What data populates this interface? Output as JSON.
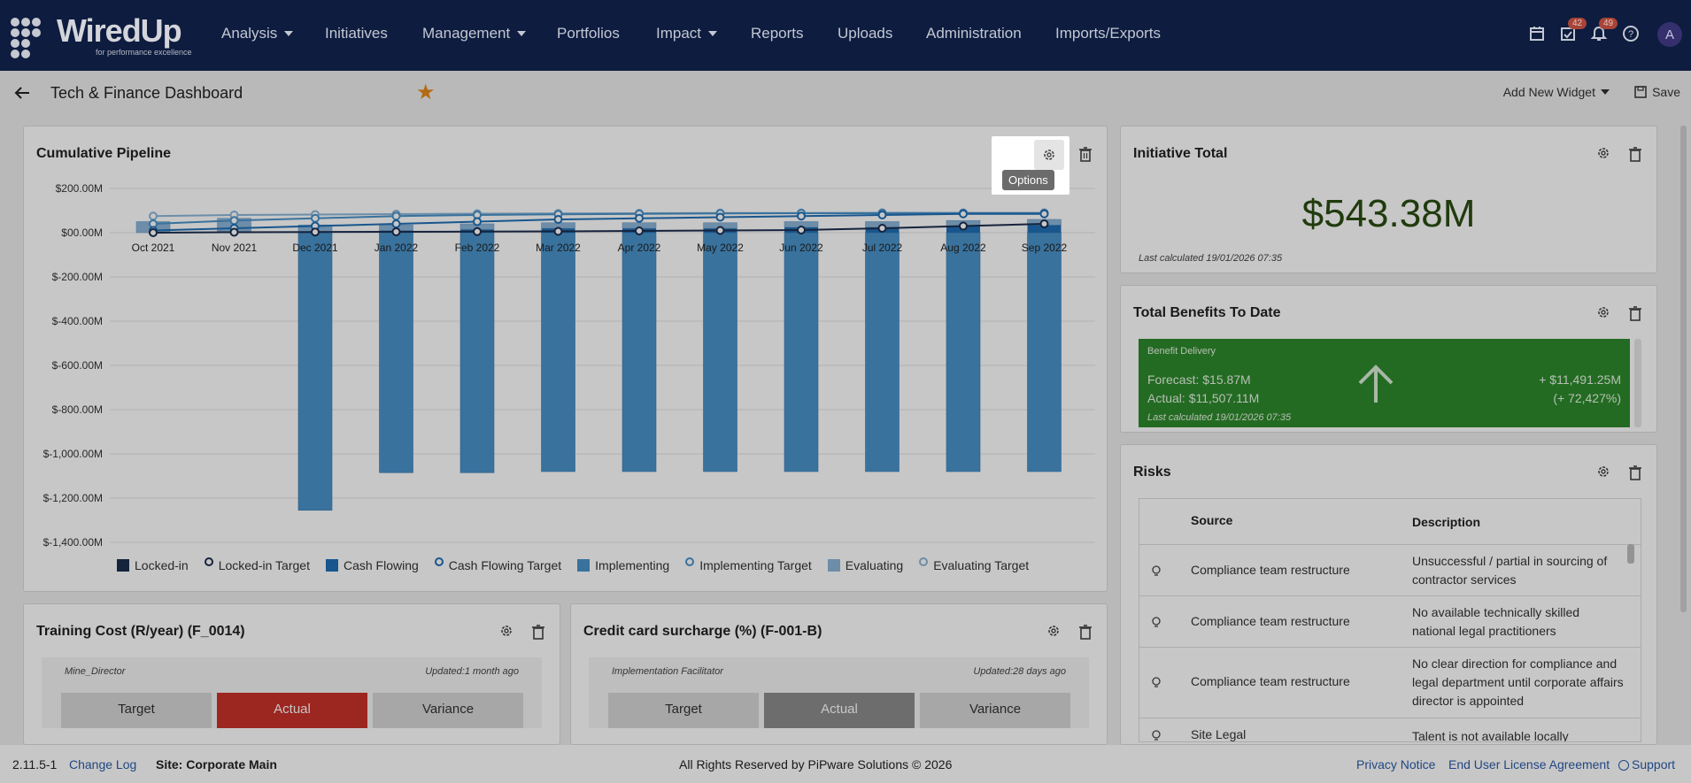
{
  "app": {
    "logo_text": "WiredUp",
    "logo_tagline": "for performance excellence",
    "avatar_initial": "A"
  },
  "nav": [
    {
      "label": "Analysis",
      "dropdown": true
    },
    {
      "label": "Initiatives",
      "dropdown": false
    },
    {
      "label": "Management",
      "dropdown": true
    },
    {
      "label": "Portfolios",
      "dropdown": false
    },
    {
      "label": "Impact",
      "dropdown": true
    },
    {
      "label": "Reports",
      "dropdown": false
    },
    {
      "label": "Uploads",
      "dropdown": false
    },
    {
      "label": "Administration",
      "dropdown": false
    },
    {
      "label": "Imports/Exports",
      "dropdown": false
    }
  ],
  "top_icons": {
    "tasks_badge": "42",
    "notifications_badge": "49"
  },
  "page": {
    "title": "Tech & Finance Dashboard",
    "add_widget_label": "Add New Widget",
    "save_label": "Save"
  },
  "pipeline": {
    "title": "Cumulative Pipeline",
    "options_tooltip": "Options",
    "legend": [
      "Locked-in",
      "Locked-in Target",
      "Cash Flowing",
      "Cash Flowing Target",
      "Implementing",
      "Implementing Target",
      "Evaluating",
      "Evaluating Target"
    ],
    "colors": {
      "locked_in": "#1c2d4f",
      "cash_flowing": "#1f6fb5",
      "implementing": "#4a92c9",
      "evaluating": "#8cb5d8"
    }
  },
  "chart_data": {
    "type": "bar",
    "title": "Cumulative Pipeline",
    "categories": [
      "Oct 2021",
      "Nov 2021",
      "Dec 2021",
      "Jan 2022",
      "Feb 2022",
      "Mar 2022",
      "Apr 2022",
      "May 2022",
      "Jun 2022",
      "Jul 2022",
      "Aug 2022",
      "Sep 2022"
    ],
    "y_ticks": [
      "$200.00M",
      "$00.00M",
      "$-200.00M",
      "$-400.00M",
      "$-600.00M",
      "$-800.00M",
      "$-1,000.00M",
      "$-1,200.00M",
      "$-1,400.00M"
    ],
    "ylim": [
      -1400,
      200
    ],
    "series": [
      {
        "name": "Evaluating",
        "kind": "bar",
        "values": [
          50,
          65,
          30,
          25,
          25,
          25,
          25,
          25,
          25,
          25,
          25,
          25
        ]
      },
      {
        "name": "Implementing",
        "kind": "bar",
        "values": [
          0,
          0,
          -1255,
          -1085,
          -1085,
          -1080,
          -1080,
          -1080,
          -1080,
          -1080,
          -1080,
          -1080
        ]
      },
      {
        "name": "Cash Flowing",
        "kind": "bar",
        "values": [
          0,
          0,
          5,
          10,
          15,
          20,
          20,
          20,
          25,
          25,
          30,
          35
        ]
      },
      {
        "name": "Locked-in Target",
        "kind": "line",
        "values": [
          0,
          2,
          3,
          4,
          5,
          6,
          8,
          10,
          12,
          20,
          30,
          40
        ]
      },
      {
        "name": "Cash Flowing Target",
        "kind": "line",
        "values": [
          10,
          20,
          30,
          40,
          50,
          60,
          65,
          70,
          75,
          80,
          85,
          85
        ]
      },
      {
        "name": "Implementing Target",
        "kind": "line",
        "values": [
          40,
          55,
          65,
          75,
          80,
          83,
          85,
          87,
          88,
          88,
          88,
          88
        ]
      },
      {
        "name": "Evaluating Target",
        "kind": "line",
        "values": [
          75,
          80,
          82,
          84,
          86,
          87,
          88,
          89,
          89,
          90,
          90,
          90
        ]
      }
    ]
  },
  "initiative_total": {
    "title": "Initiative Total",
    "value": "$543.38M",
    "last_calculated": "Last calculated 19/01/2026 07:35"
  },
  "benefits": {
    "title": "Total Benefits To Date",
    "card_title": "Benefit Delivery",
    "forecast": "Forecast: $15.87M",
    "actual": "Actual: $11,507.11M",
    "delta": "+ $11,491.25M",
    "delta_pct": "(+ 72,427%)",
    "last_calculated": "Last calculated 19/01/2026 07:35",
    "card_color": "#2e8a2c"
  },
  "risks": {
    "title": "Risks",
    "columns": [
      "Source",
      "Description"
    ],
    "rows": [
      {
        "source": "Compliance team restructure",
        "description": "Unsuccessful / partial in sourcing of contractor services"
      },
      {
        "source": "Compliance team restructure",
        "description": "No available technically skilled national legal practitioners"
      },
      {
        "source": "Compliance team restructure",
        "description": "No clear direction for compliance and legal department until corporate affairs director is appointed"
      },
      {
        "source": "Site Legal",
        "description": "Talent is not available locally"
      }
    ]
  },
  "training": {
    "title": "Training Cost (R/year) (F_0014)",
    "owner": "Mine_Director",
    "updated": "Updated:1 month ago",
    "cols": [
      "Target",
      "Actual",
      "Variance"
    ]
  },
  "credit": {
    "title": "Credit card surcharge (%) (F-001-B)",
    "owner": "Implementation Facilitator",
    "updated": "Updated:28 days ago",
    "cols": [
      "Target",
      "Actual",
      "Variance"
    ]
  },
  "footer": {
    "version": "2.11.5-1",
    "changelog": "Change Log",
    "site": "Site: Corporate Main",
    "copyright": "All Rights Reserved by PiPware Solutions © 2026",
    "privacy": "Privacy Notice",
    "eula": "End User License Agreement",
    "support": "Support"
  }
}
